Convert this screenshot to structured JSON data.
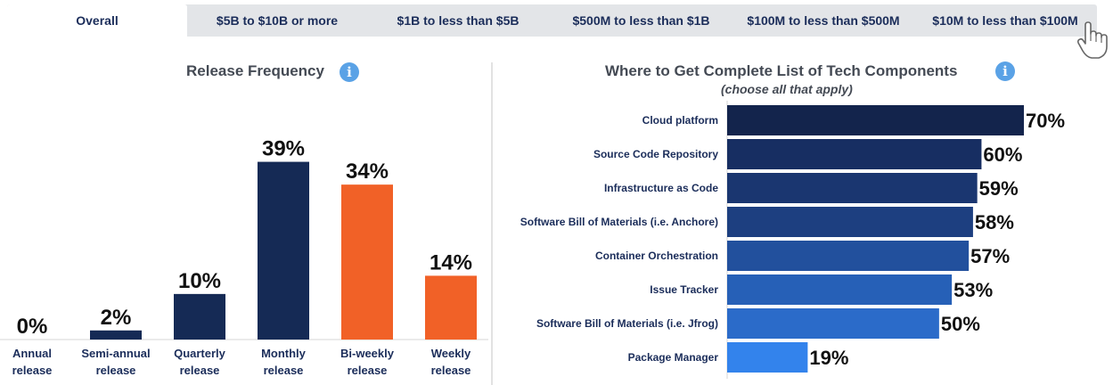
{
  "tabs": [
    {
      "label": "Overall",
      "active": true
    },
    {
      "label": "$5B to $10B or more"
    },
    {
      "label": "$1B to less than $5B"
    },
    {
      "label": "$500M to less than $1B"
    },
    {
      "label": "$100M to less than $500M"
    },
    {
      "label": "$10M to less than $100M"
    }
  ],
  "icons": {
    "info": "info-circle-icon",
    "pointer": "hand-pointer-icon"
  },
  "info_glyph": "i",
  "colors": {
    "navy": "#152a55",
    "orange": "#f16127",
    "tab_bg": "#e3e5e8",
    "info": "#5aa2e6"
  },
  "chart_data": [
    {
      "type": "bar",
      "title": "Release Frequency",
      "categories": [
        [
          "Annual",
          "release"
        ],
        [
          "Semi-annual",
          "release"
        ],
        [
          "Quarterly",
          "release"
        ],
        [
          "Monthly",
          "release"
        ],
        [
          "Bi-weekly",
          "release"
        ],
        [
          "Weekly",
          "release"
        ]
      ],
      "values": [
        0,
        2,
        10,
        39,
        34,
        14
      ],
      "value_format": "percent",
      "bar_colors": [
        "#152a55",
        "#152a55",
        "#152a55",
        "#152a55",
        "#f16127",
        "#f16127"
      ],
      "ylim": [
        0,
        45
      ]
    },
    {
      "type": "bar",
      "orientation": "horizontal",
      "title": "Where to Get Complete List of Tech Components",
      "subtitle": "(choose all that apply)",
      "categories": [
        "Cloud platform",
        "Source Code Repository",
        "Infrastructure as Code",
        "Software Bill of Materials (i.e. Anchore)",
        "Container Orchestration",
        "Issue Tracker",
        "Software Bill of Materials (i.e. Jfrog)",
        "Package Manager"
      ],
      "values": [
        70,
        60,
        59,
        58,
        57,
        53,
        50,
        19
      ],
      "value_format": "percent",
      "bar_colors": [
        "#13244c",
        "#172e62",
        "#1a3670",
        "#1d3f80",
        "#22509d",
        "#2660b7",
        "#2b6bc9",
        "#3383ec"
      ],
      "xlim": [
        0,
        70
      ]
    }
  ]
}
